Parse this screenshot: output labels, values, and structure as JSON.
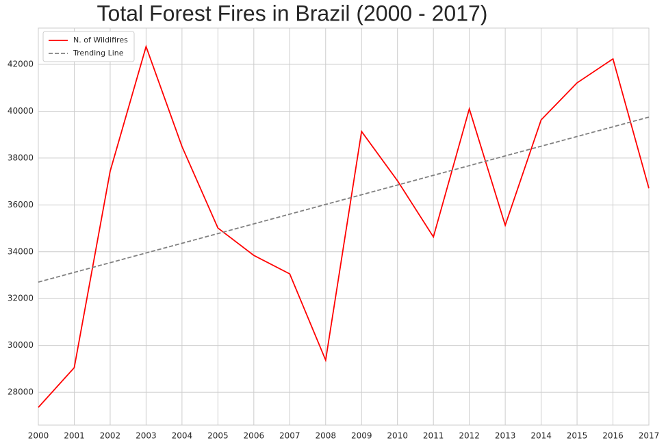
{
  "chart_data": {
    "type": "line",
    "title": "Total Forest Fires in Brazil (2000 - 2017)",
    "x": [
      2000,
      2001,
      2002,
      2003,
      2004,
      2005,
      2006,
      2007,
      2008,
      2009,
      2010,
      2011,
      2012,
      2013,
      2014,
      2015,
      2016,
      2017
    ],
    "series": [
      {
        "name": "N. of Wildifires",
        "color": "#ff0000",
        "dash": false,
        "values": [
          27357,
          29052,
          37440,
          42760,
          38492,
          35014,
          33845,
          33055,
          29372,
          39135,
          37031,
          34634,
          40100,
          35131,
          39632,
          41211,
          42234,
          36709
        ]
      },
      {
        "name": "Trending Line",
        "color": "#808080",
        "dash": true,
        "values": [
          32705,
          33119,
          33534,
          33948,
          34362,
          34777,
          35191,
          35605,
          36020,
          36434,
          36848,
          37263,
          37677,
          38092,
          38506,
          38920,
          39335,
          39749
        ]
      }
    ],
    "xlim": [
      2000,
      2017
    ],
    "xticks": [
      2000,
      2001,
      2002,
      2003,
      2004,
      2005,
      2006,
      2007,
      2008,
      2009,
      2010,
      2011,
      2012,
      2013,
      2014,
      2015,
      2016,
      2017
    ],
    "ylim": [
      26600,
      43550
    ],
    "yticks": [
      28000,
      30000,
      32000,
      34000,
      36000,
      38000,
      40000,
      42000
    ],
    "grid": true,
    "legend": "upper left"
  }
}
